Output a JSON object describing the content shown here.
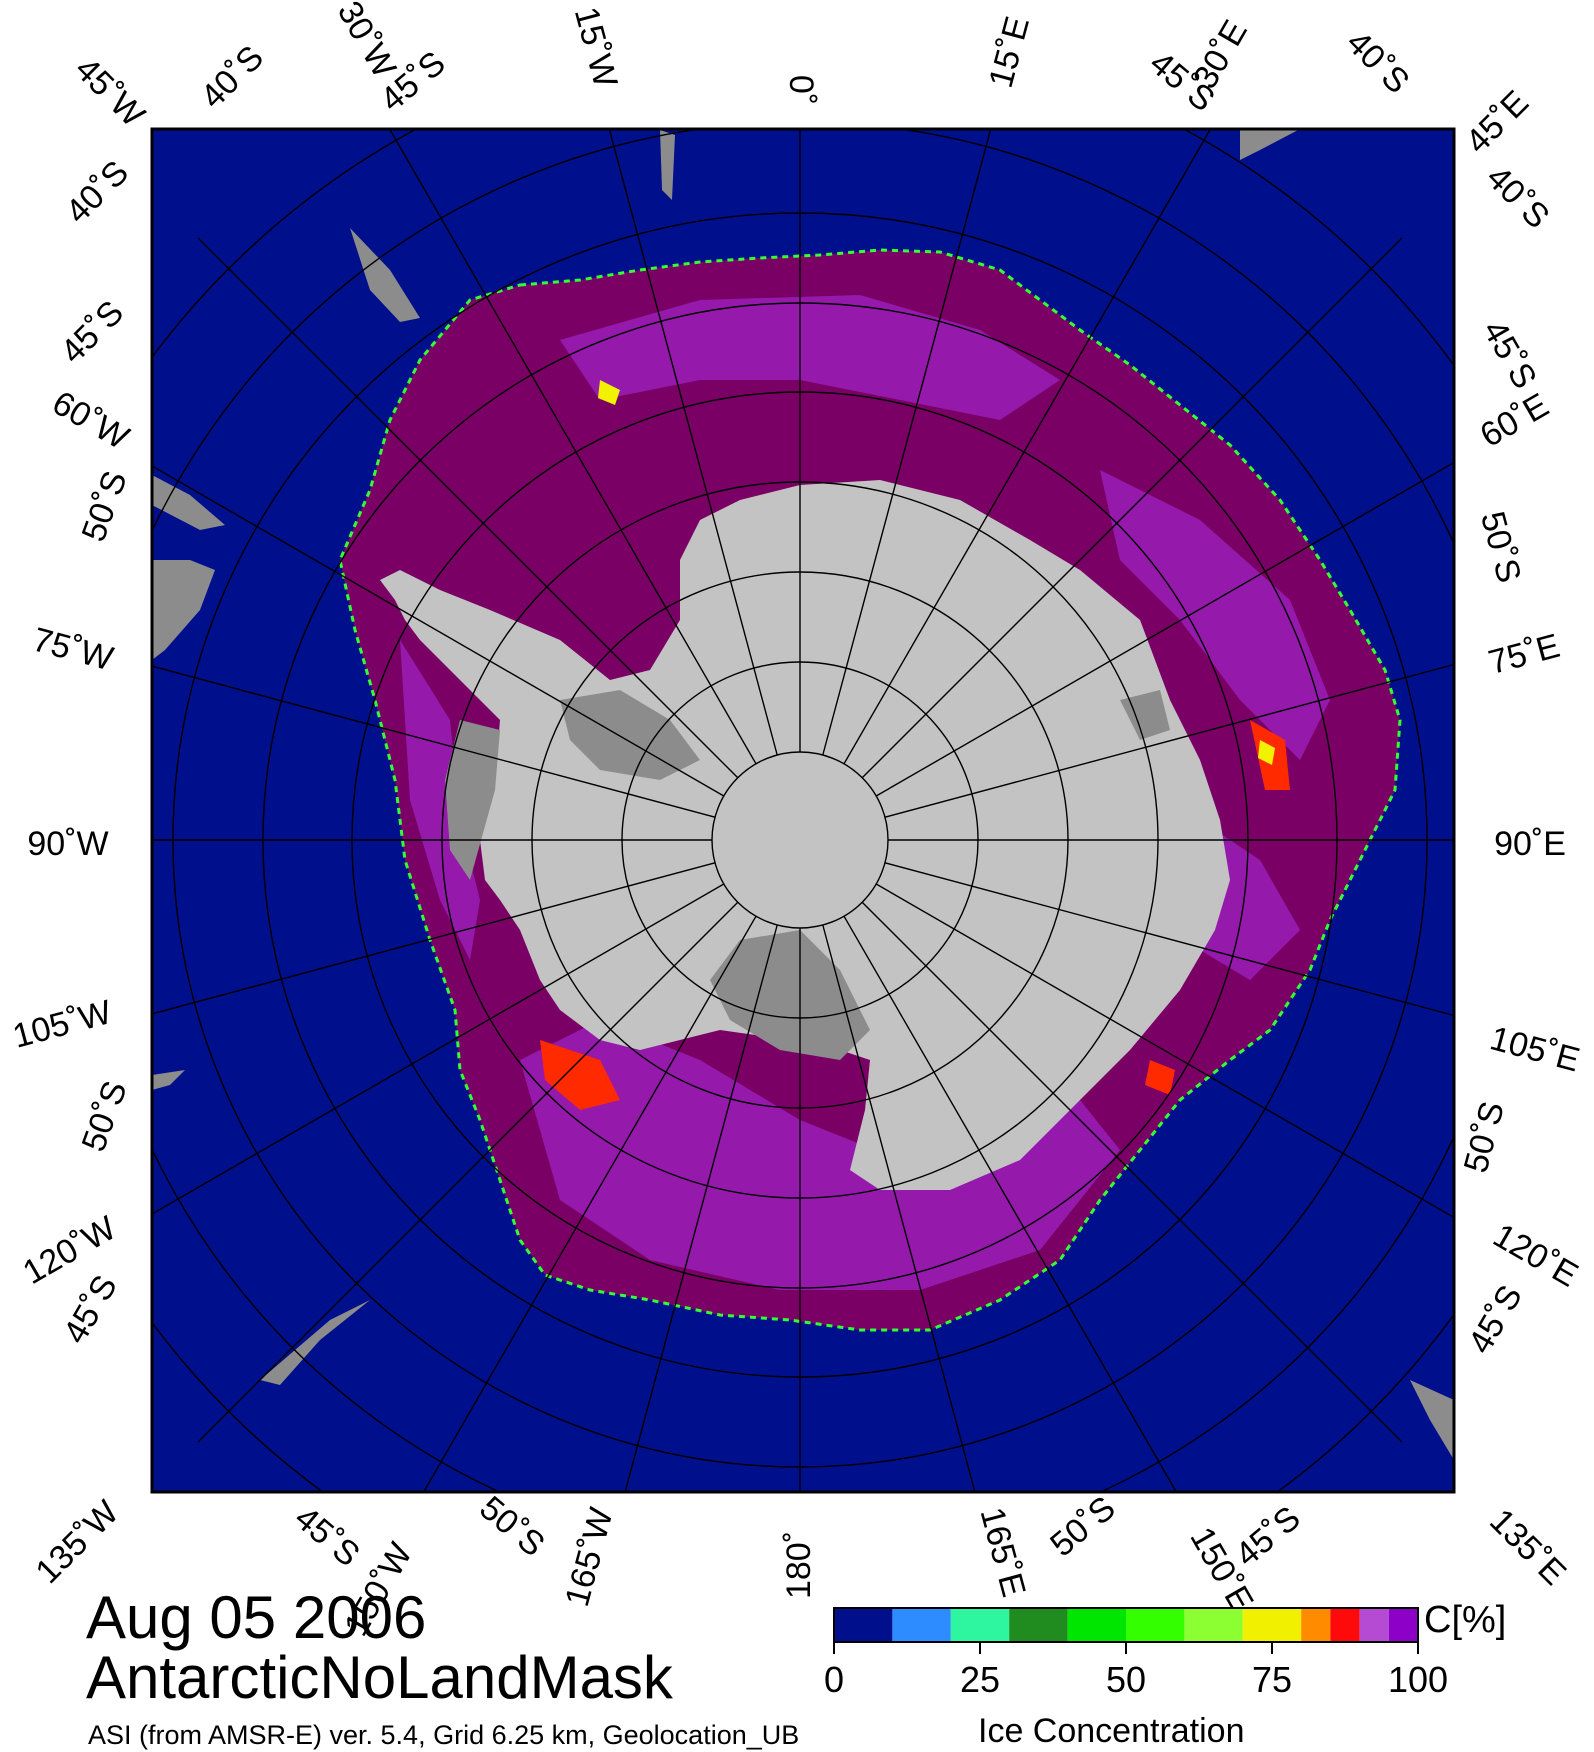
{
  "map": {
    "title_date": "Aug 05 2006",
    "title_product": "AntarcticNoLandMask",
    "footer_left": "ASI (from AMSR-E) ver. 5.4,  Grid 6.25 km, Geolocation_UB",
    "footer_right": "Ice Concentration",
    "colors": {
      "ocean": "#000f8c",
      "land": "#c3c3c3",
      "ice_shelf": "#8c8c8c",
      "ice_max": "#7a0066",
      "ice_high": "#9a1fb8",
      "ice_mid": "#ff2a00",
      "ice_low": "#f2f200",
      "ice_edge": "#33ff33",
      "graticule": "#000000"
    },
    "top_labels": [
      "45˚W",
      "40˚S",
      "30˚W",
      "45˚S",
      "15˚W",
      "0˚",
      "15˚E",
      "45˚S",
      "30˚E",
      "40˚S",
      "45˚E"
    ],
    "right_labels": [
      "40˚S",
      "45˚S",
      "60˚E",
      "50˚S",
      "75˚E",
      "90˚E",
      "105˚E",
      "50˚S",
      "120˚E",
      "45˚S"
    ],
    "left_labels": [
      "40˚S",
      "45˚S",
      "60˚W",
      "50˚S",
      "75˚W",
      "90˚W",
      "105˚W",
      "50˚S",
      "120˚W",
      "45˚S"
    ],
    "bottom_labels": [
      "135˚W",
      "45˚S",
      "150˚W",
      "50˚S",
      "165˚W",
      "180˚",
      "165˚E",
      "50˚S",
      "150˚E",
      "45˚S",
      "135˚E"
    ]
  },
  "colorbar": {
    "unit": "C[%]",
    "tick_labels": [
      "0",
      "25",
      "50",
      "75",
      "100"
    ],
    "tick_values": [
      0,
      25,
      50,
      75,
      100
    ],
    "range": [
      0,
      100
    ],
    "bins": [
      {
        "from": 0,
        "to": 10,
        "color": "#000f8c"
      },
      {
        "from": 10,
        "to": 20,
        "color": "#2d8cff"
      },
      {
        "from": 20,
        "to": 30,
        "color": "#2df5a0"
      },
      {
        "from": 30,
        "to": 40,
        "color": "#208c20"
      },
      {
        "from": 40,
        "to": 50,
        "color": "#00e600"
      },
      {
        "from": 50,
        "to": 60,
        "color": "#33ff00"
      },
      {
        "from": 60,
        "to": 70,
        "color": "#8cff33"
      },
      {
        "from": 70,
        "to": 80,
        "color": "#f0f000"
      },
      {
        "from": 80,
        "to": 85,
        "color": "#ff8c00"
      },
      {
        "from": 85,
        "to": 90,
        "color": "#ff0a0a"
      },
      {
        "from": 90,
        "to": 95,
        "color": "#b44bd2"
      },
      {
        "from": 95,
        "to": 100,
        "color": "#8c00c8"
      }
    ]
  }
}
